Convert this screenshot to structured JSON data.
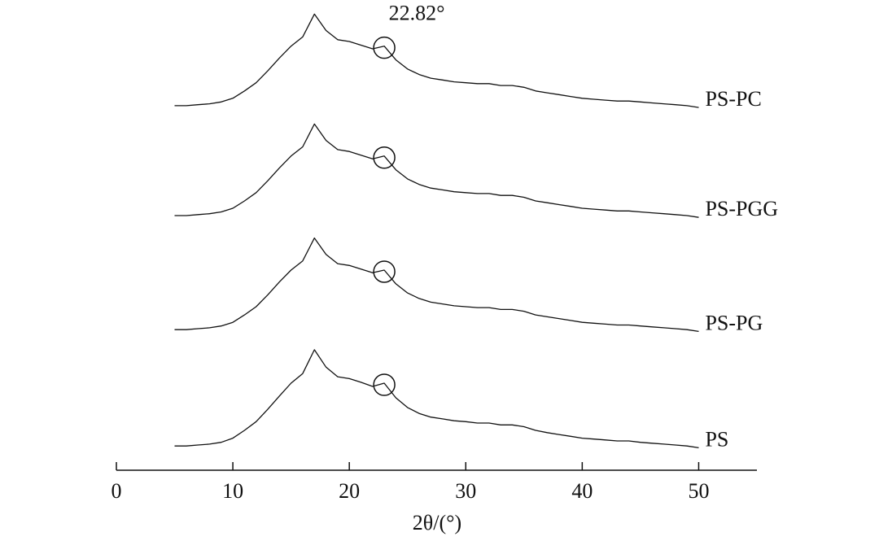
{
  "chart_data": {
    "type": "line",
    "xlabel": "2θ/(°)",
    "annotation": "22.82°",
    "x": [
      5,
      6,
      7,
      8,
      9,
      10,
      11,
      12,
      13,
      14,
      15,
      16,
      17,
      18,
      19,
      20,
      21,
      22,
      23,
      24,
      25,
      26,
      27,
      28,
      29,
      30,
      31,
      32,
      33,
      34,
      35,
      36,
      37,
      38,
      39,
      40,
      41,
      42,
      43,
      44,
      45,
      46,
      47,
      48,
      49,
      50
    ],
    "xlim": [
      0,
      55
    ],
    "xticks": [
      0,
      10,
      20,
      30,
      40,
      50
    ],
    "ylim": [
      0,
      100
    ],
    "series": [
      {
        "name": "PS",
        "color": "#111111",
        "values": [
          5.3,
          5.3,
          5.5,
          5.7,
          6.1,
          7.0,
          8.7,
          10.6,
          13.3,
          16.2,
          19.0,
          21.1,
          26.3,
          22.5,
          20.4,
          20.0,
          19.2,
          18.3,
          19.0,
          15.8,
          13.7,
          12.4,
          11.6,
          11.2,
          10.8,
          10.6,
          10.3,
          10.3,
          9.9,
          9.9,
          9.5,
          8.7,
          8.2,
          7.8,
          7.4,
          7.0,
          6.8,
          6.6,
          6.4,
          6.4,
          6.1,
          5.9,
          5.7,
          5.5,
          5.3,
          4.9
        ]
      },
      {
        "name": "PS-PG",
        "color": "#111111",
        "values": [
          30.7,
          30.7,
          30.9,
          31.1,
          31.5,
          32.3,
          33.9,
          35.7,
          38.3,
          41.1,
          43.7,
          45.7,
          50.7,
          47.1,
          45.1,
          44.7,
          43.9,
          43.1,
          43.7,
          40.7,
          38.7,
          37.5,
          36.7,
          36.3,
          35.9,
          35.7,
          35.5,
          35.5,
          35.1,
          35.1,
          34.7,
          33.9,
          33.5,
          33.1,
          32.7,
          32.3,
          32.1,
          31.9,
          31.7,
          31.7,
          31.5,
          31.3,
          31.1,
          30.9,
          30.7,
          30.3
        ]
      },
      {
        "name": "PS-PGG",
        "color": "#111111",
        "values": [
          55.6,
          55.6,
          55.8,
          56.0,
          56.4,
          57.2,
          58.8,
          60.6,
          63.2,
          66.0,
          68.6,
          70.6,
          75.6,
          72.0,
          70.0,
          69.6,
          68.8,
          68.0,
          68.6,
          65.6,
          63.6,
          62.4,
          61.6,
          61.2,
          60.8,
          60.6,
          60.4,
          60.4,
          60.0,
          60.0,
          59.6,
          58.8,
          58.4,
          58.0,
          57.6,
          57.2,
          57.0,
          56.8,
          56.6,
          56.6,
          56.4,
          56.2,
          56.0,
          55.8,
          55.6,
          55.2
        ]
      },
      {
        "name": "PS-PC",
        "color": "#111111",
        "values": [
          79.6,
          79.6,
          79.8,
          80.0,
          80.4,
          81.2,
          82.8,
          84.6,
          87.2,
          90.0,
          92.6,
          94.6,
          99.6,
          96.0,
          94.0,
          93.6,
          92.8,
          92.0,
          92.6,
          89.6,
          87.6,
          86.4,
          85.6,
          85.2,
          84.8,
          84.6,
          84.4,
          84.4,
          84.0,
          84.0,
          83.6,
          82.8,
          82.4,
          82.0,
          81.6,
          81.2,
          81.0,
          80.8,
          80.6,
          80.6,
          80.4,
          80.2,
          80.0,
          79.8,
          79.6,
          79.2
        ]
      }
    ]
  }
}
